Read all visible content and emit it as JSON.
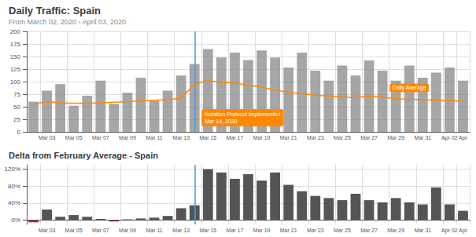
{
  "chart_data": [
    {
      "type": "bar",
      "title": "Daily Traffic: Spain",
      "subtitle": "From March 02, 2020 - April 03, 2020",
      "categories": [
        null,
        "Mar 03",
        null,
        "Mar 05",
        null,
        "Mar 07",
        null,
        "Mar 09",
        null,
        "Mar 11",
        null,
        "Mar 13",
        null,
        "Mar 15",
        null,
        "Mar 17",
        null,
        "Mar 19",
        null,
        "Mar 21",
        null,
        "Mar 23",
        null,
        "Mar 25",
        null,
        "Mar 27",
        null,
        "Mar 29",
        null,
        "Mar 31",
        null,
        "Apr 02",
        "Apr"
      ],
      "series": [
        {
          "type": "bar",
          "color": "#888888",
          "values": [
            60,
            82,
            95,
            52,
            72,
            102,
            56,
            78,
            108,
            62,
            82,
            112,
            135,
            165,
            148,
            158,
            143,
            162,
            148,
            128,
            158,
            122,
            102,
            132,
            112,
            142,
            122,
            102,
            132,
            108,
            118,
            128,
            102
          ]
        },
        {
          "type": "line",
          "color": "#ff8800",
          "values": [
            55,
            60,
            58,
            57,
            57,
            58,
            59,
            60,
            62,
            63,
            64,
            67,
            95,
            102,
            99,
            97,
            93,
            89,
            83,
            79,
            76,
            73,
            71,
            69,
            68,
            71,
            69,
            66,
            65,
            64,
            63,
            62,
            61
          ]
        }
      ],
      "ylim": [
        0,
        200
      ],
      "yticks": [
        0,
        25,
        50,
        75,
        100,
        125,
        150,
        175,
        200
      ],
      "grid": true,
      "vline": 12,
      "annotations": [
        "Isolation Protocol Implemented\nMar 14, 2020",
        "Daily Average"
      ]
    },
    {
      "type": "bar",
      "title": "Delta from February Average - Spain",
      "categories": [
        null,
        "Mar 03",
        null,
        "Mar 05",
        null,
        "Mar 07",
        null,
        "Mar 09",
        null,
        "Mar 11",
        null,
        "Mar 13",
        null,
        "Mar 15",
        null,
        "Mar 17",
        null,
        "Mar 19",
        null,
        "Mar 21",
        null,
        "Mar 23",
        null,
        "Mar 25",
        null,
        "Mar 27",
        null,
        "Mar 29",
        null,
        "Mar 31",
        null,
        "Apr 02",
        "Apr"
      ],
      "values": [
        -5,
        25,
        8,
        12,
        8,
        3,
        -3,
        2,
        4,
        6,
        10,
        28,
        35,
        120,
        112,
        97,
        108,
        93,
        112,
        83,
        68,
        57,
        52,
        47,
        62,
        47,
        42,
        52,
        42,
        37,
        77,
        37,
        22
      ],
      "colors": [
        "#993333",
        "#555555",
        "#555555",
        "#555555",
        "#555555",
        "#555555",
        "#993333",
        "#555555",
        "#555555",
        "#555555",
        "#555555",
        "#555555",
        "#555555",
        "#555555",
        "#555555",
        "#555555",
        "#555555",
        "#555555",
        "#555555",
        "#555555",
        "#555555",
        "#555555",
        "#555555",
        "#555555",
        "#555555",
        "#555555",
        "#555555",
        "#555555",
        "#555555",
        "#555555",
        "#555555",
        "#555555",
        "#555555"
      ],
      "ylim": [
        -10,
        130
      ],
      "yticks": [
        {
          "value": 0,
          "label": "0%"
        },
        {
          "value": 40,
          "label": "40%"
        },
        {
          "value": 80,
          "label": "80%"
        },
        {
          "value": 120,
          "label": "120%"
        }
      ],
      "grid": true,
      "vline": 12
    }
  ]
}
